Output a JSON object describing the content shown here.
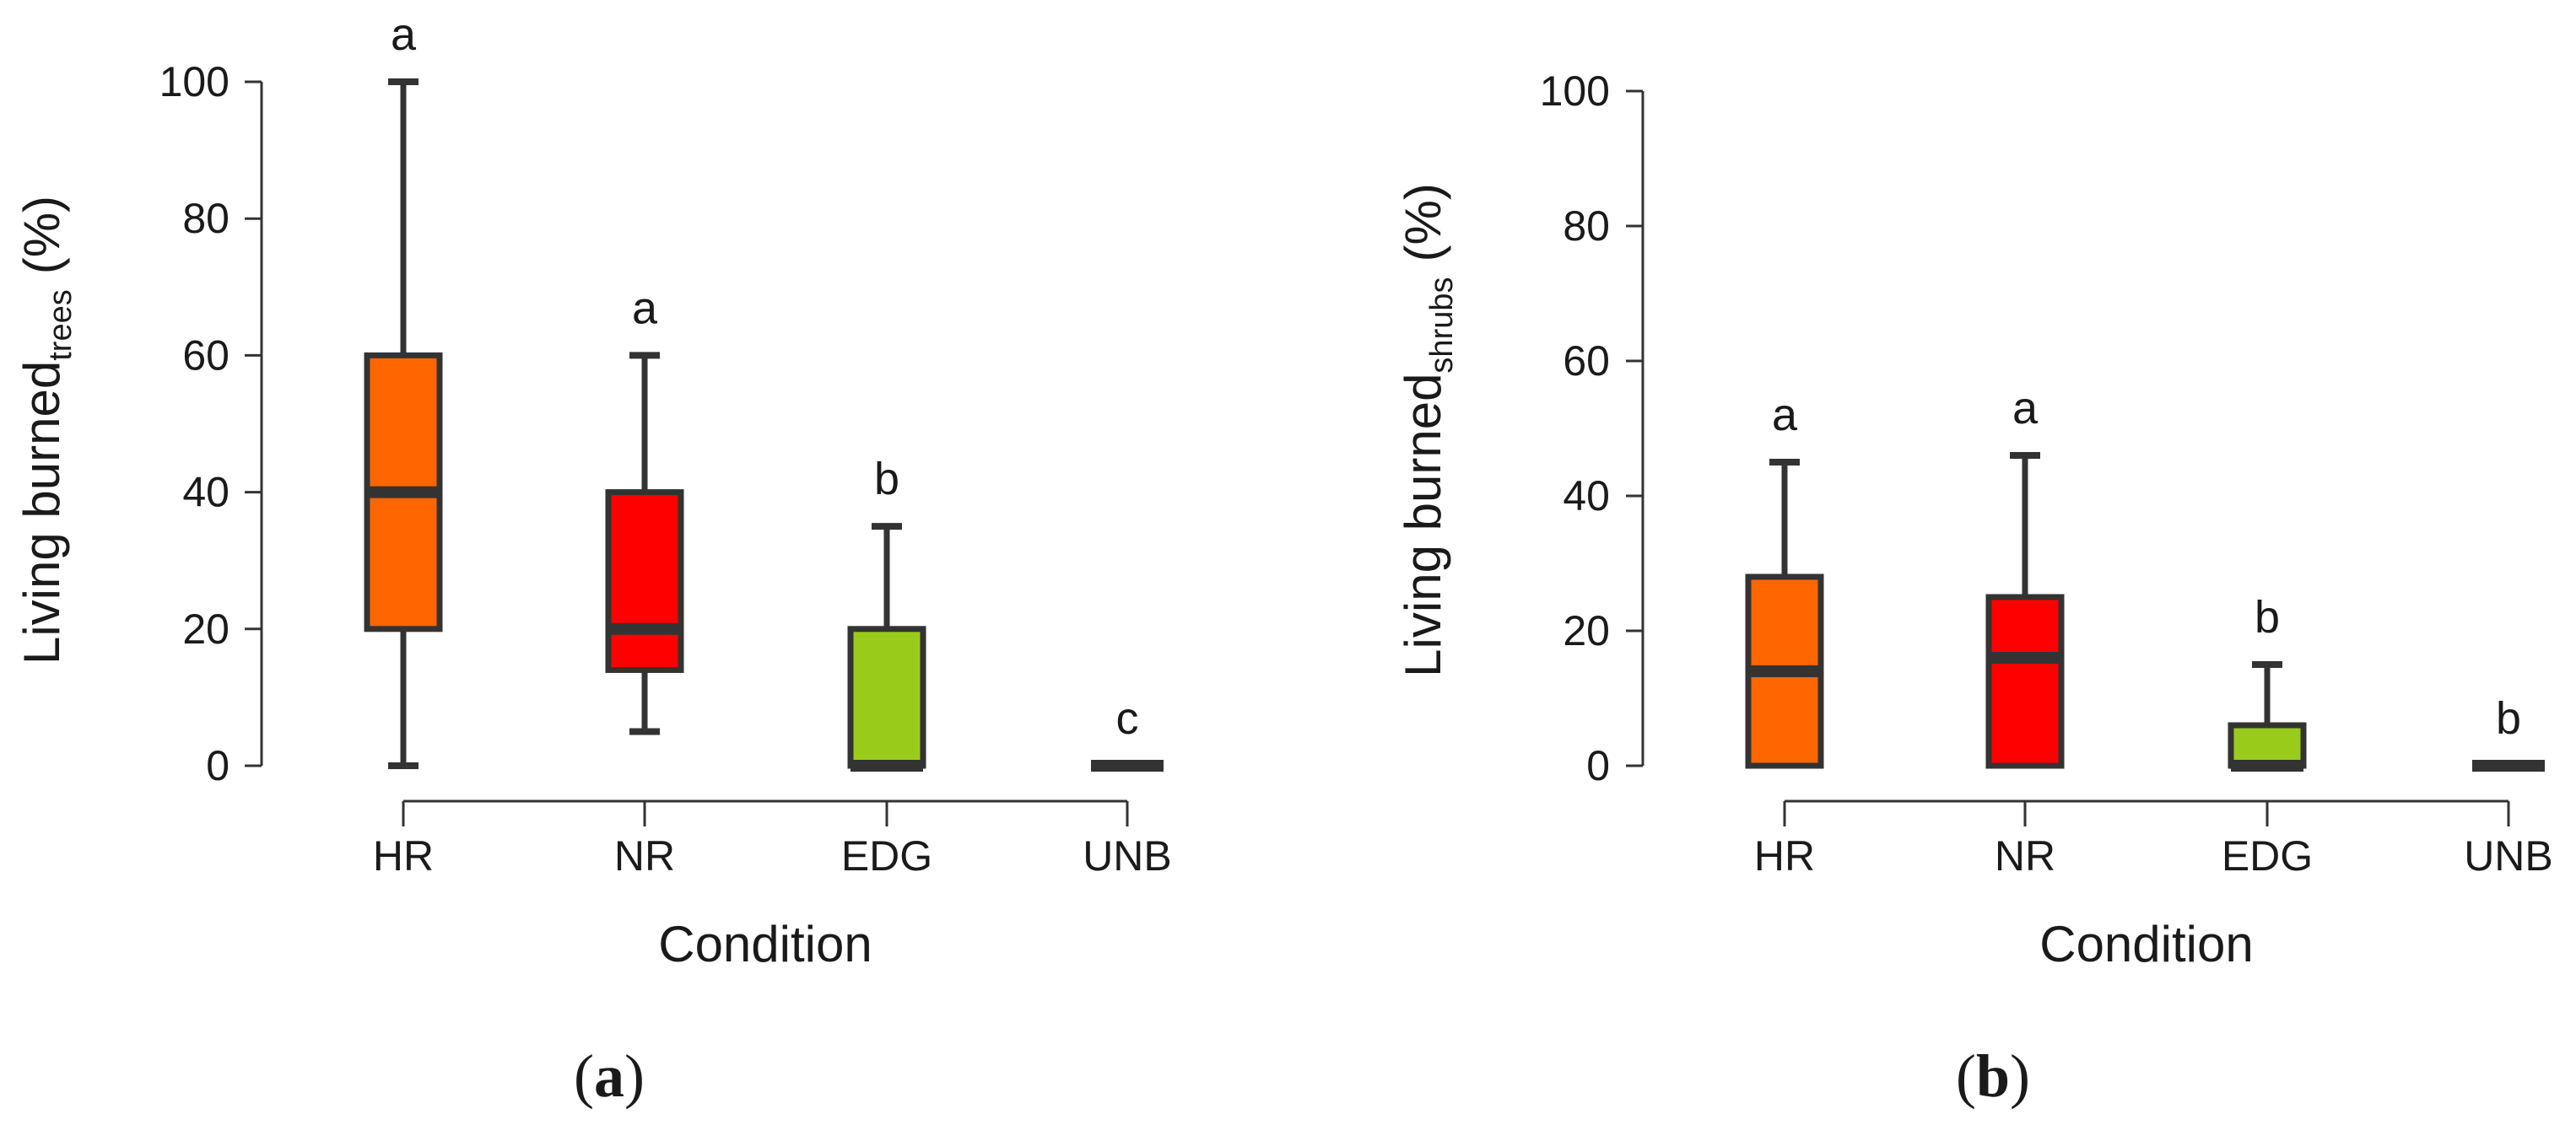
{
  "chart_data": [
    {
      "type": "box",
      "panel_label": "a",
      "xlabel": "Condition",
      "ylabel": {
        "main": "Living burned",
        "subscript": "trees",
        "unit": "(%)"
      },
      "ylim": [
        0,
        100
      ],
      "yticks": [
        0,
        20,
        40,
        60,
        80,
        100
      ],
      "categories": [
        "HR",
        "NR",
        "EDG",
        "UNB"
      ],
      "boxes": [
        {
          "category": "HR",
          "min": 0,
          "q1": 20,
          "median": 40,
          "q3": 60,
          "max": 100,
          "color": "#ff6600",
          "letter": "a"
        },
        {
          "category": "NR",
          "min": 5,
          "q1": 14,
          "median": 20,
          "q3": 40,
          "max": 60,
          "color": "#ff0000",
          "letter": "a"
        },
        {
          "category": "EDG",
          "min": 0,
          "q1": 0,
          "median": 0,
          "q3": 20,
          "max": 35,
          "color": "#99cc1a",
          "letter": "b"
        },
        {
          "category": "UNB",
          "min": 0,
          "q1": 0,
          "median": 0,
          "q3": 0,
          "max": 0,
          "color": "#333333",
          "letter": "c"
        }
      ]
    },
    {
      "type": "box",
      "panel_label": "b",
      "xlabel": "Condition",
      "ylabel": {
        "main": "Living burned",
        "subscript": "shrubs",
        "unit": "(%)"
      },
      "ylim": [
        0,
        100
      ],
      "yticks": [
        0,
        20,
        40,
        60,
        80,
        100
      ],
      "categories": [
        "HR",
        "NR",
        "EDG",
        "UNB"
      ],
      "boxes": [
        {
          "category": "HR",
          "min": 0,
          "q1": 0,
          "median": 14,
          "q3": 28,
          "max": 45,
          "color": "#ff6600",
          "letter": "a"
        },
        {
          "category": "NR",
          "min": 0,
          "q1": 0,
          "median": 16,
          "q3": 25,
          "max": 46,
          "color": "#ff0000",
          "letter": "a"
        },
        {
          "category": "EDG",
          "min": 0,
          "q1": 0,
          "median": 0,
          "q3": 6,
          "max": 15,
          "color": "#99cc1a",
          "letter": "b"
        },
        {
          "category": "UNB",
          "min": 0,
          "q1": 0,
          "median": 0,
          "q3": 0,
          "max": 0,
          "color": "#333333",
          "letter": "b"
        }
      ]
    }
  ]
}
